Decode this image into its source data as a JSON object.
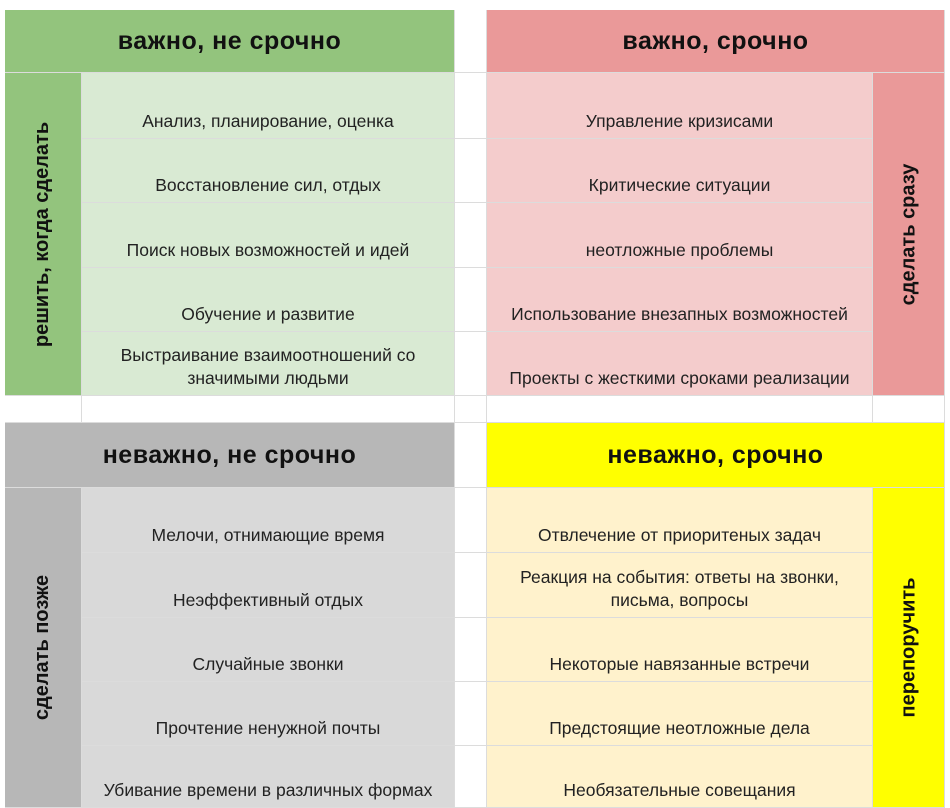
{
  "colors": {
    "q1_header": "#93c47d",
    "q1_cell": "#d9ead3",
    "q2_header": "#ea9999",
    "q2_cell": "#f4cccc",
    "q3_header": "#b7b7b7",
    "q3_cell": "#d9d9d9",
    "q4_header": "#ffff00",
    "q4_cell": "#fff2cc"
  },
  "quadrants": [
    {
      "id": "important-not-urgent",
      "title": "важно, не срочно",
      "side_label": "решить, когда сделать",
      "items": [
        "Анализ, планирование, оценка",
        "Восстановление сил, отдых",
        "Поиск новых возможностей и идей",
        "Обучение и развитие",
        "Выстраивание взаимоотношений со значимыми людьми"
      ]
    },
    {
      "id": "important-urgent",
      "title": "важно, срочно",
      "side_label": "сделать сразу",
      "items": [
        "Управление кризисами",
        "Критические ситуации",
        "неотложные проблемы",
        "Использование внезапных возможностей",
        "Проекты с жесткими сроками реализации"
      ]
    },
    {
      "id": "not-important-not-urgent",
      "title": "неважно, не срочно",
      "side_label": "сделать позже",
      "items": [
        "Мелочи, отнимающие время",
        "Неэффективный отдых",
        "Случайные звонки",
        "Прочтение ненужной почты",
        "Убивание времени в различных формах"
      ]
    },
    {
      "id": "not-important-urgent",
      "title": "неважно, срочно",
      "side_label": "перепоручить",
      "items": [
        "Отвлечение от приоритеных задач",
        "Реакция на события: ответы на звонки, письма, вопросы",
        "Некоторые навязанные встречи",
        "Предстоящие неотложные дела",
        "Необязательные совещания"
      ]
    }
  ]
}
